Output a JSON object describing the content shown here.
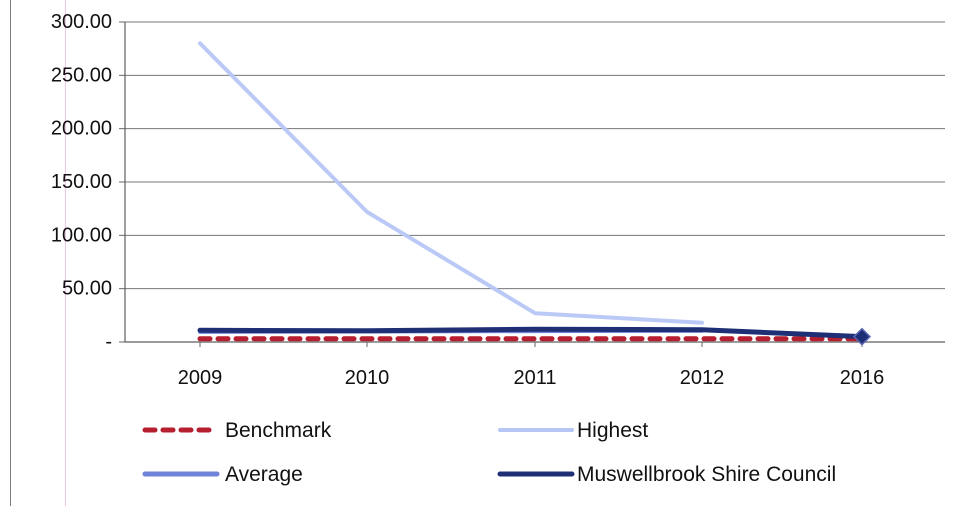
{
  "chart_data": {
    "type": "line",
    "categories": [
      "2009",
      "2010",
      "2011",
      "2012",
      "2016"
    ],
    "y_tick_labels": [
      "-",
      "50.00",
      "100.00",
      "150.00",
      "200.00",
      "250.00",
      "300.00"
    ],
    "ylim": [
      0,
      300
    ],
    "grid": true,
    "legend_position": "bottom",
    "series": [
      {
        "name": "Benchmark",
        "color": "#b51f2f",
        "style": "dashed",
        "values": [
          3,
          3,
          3,
          3,
          3
        ]
      },
      {
        "name": "Highest",
        "color": "#b7c6f5",
        "style": "solid",
        "values": [
          280,
          122,
          27,
          18,
          null
        ]
      },
      {
        "name": "Average",
        "color": "#6f83d8",
        "style": "solid",
        "values": [
          9.5,
          9.8,
          10.2,
          10.6,
          null
        ]
      },
      {
        "name": "Muswellbrook Shire Council",
        "color": "#1f2f76",
        "style": "solid",
        "values": [
          11,
          10.5,
          12,
          11.5,
          5
        ]
      }
    ]
  }
}
